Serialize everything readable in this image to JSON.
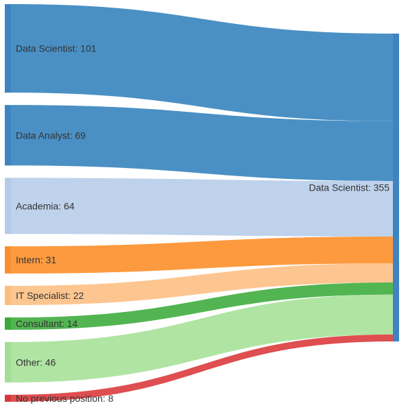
{
  "chart_data": {
    "type": "sankey",
    "unit": "",
    "target": {
      "name": "Data Scientist",
      "value": 355,
      "color": "#3f83c0"
    },
    "sources": [
      {
        "name": "Data Scientist",
        "value": 101,
        "node_color": "#3f83c0",
        "link_color": "#4a90c4",
        "label": "Data Scientist: 101"
      },
      {
        "name": "Data Analyst",
        "value": 69,
        "node_color": "#3f83c0",
        "link_color": "#4a90c4",
        "label": "Data Analyst: 69"
      },
      {
        "name": "Academia",
        "value": 64,
        "node_color": "#b4cbe7",
        "link_color": "#bfd2ec",
        "label": "Academia: 64"
      },
      {
        "name": "Intern",
        "value": 31,
        "node_color": "#f98e2c",
        "link_color": "#fd9a3f",
        "label": "Intern: 31"
      },
      {
        "name": "IT Specialist",
        "value": 22,
        "node_color": "#fbbd80",
        "link_color": "#fdc690",
        "label": "IT Specialist: 22"
      },
      {
        "name": "Consultant",
        "value": 14,
        "node_color": "#3aa93a",
        "link_color": "#52b552",
        "label": "Consultant: 14"
      },
      {
        "name": "Other",
        "value": 46,
        "node_color": "#a3de95",
        "link_color": "#b0e4a3",
        "label": "Other: 46"
      },
      {
        "name": "No previous position",
        "value": 8,
        "node_color": "#d7373a",
        "link_color": "#df4e50",
        "label": "No previous position: 8"
      }
    ],
    "target_label": "Data Scientist: 355"
  }
}
